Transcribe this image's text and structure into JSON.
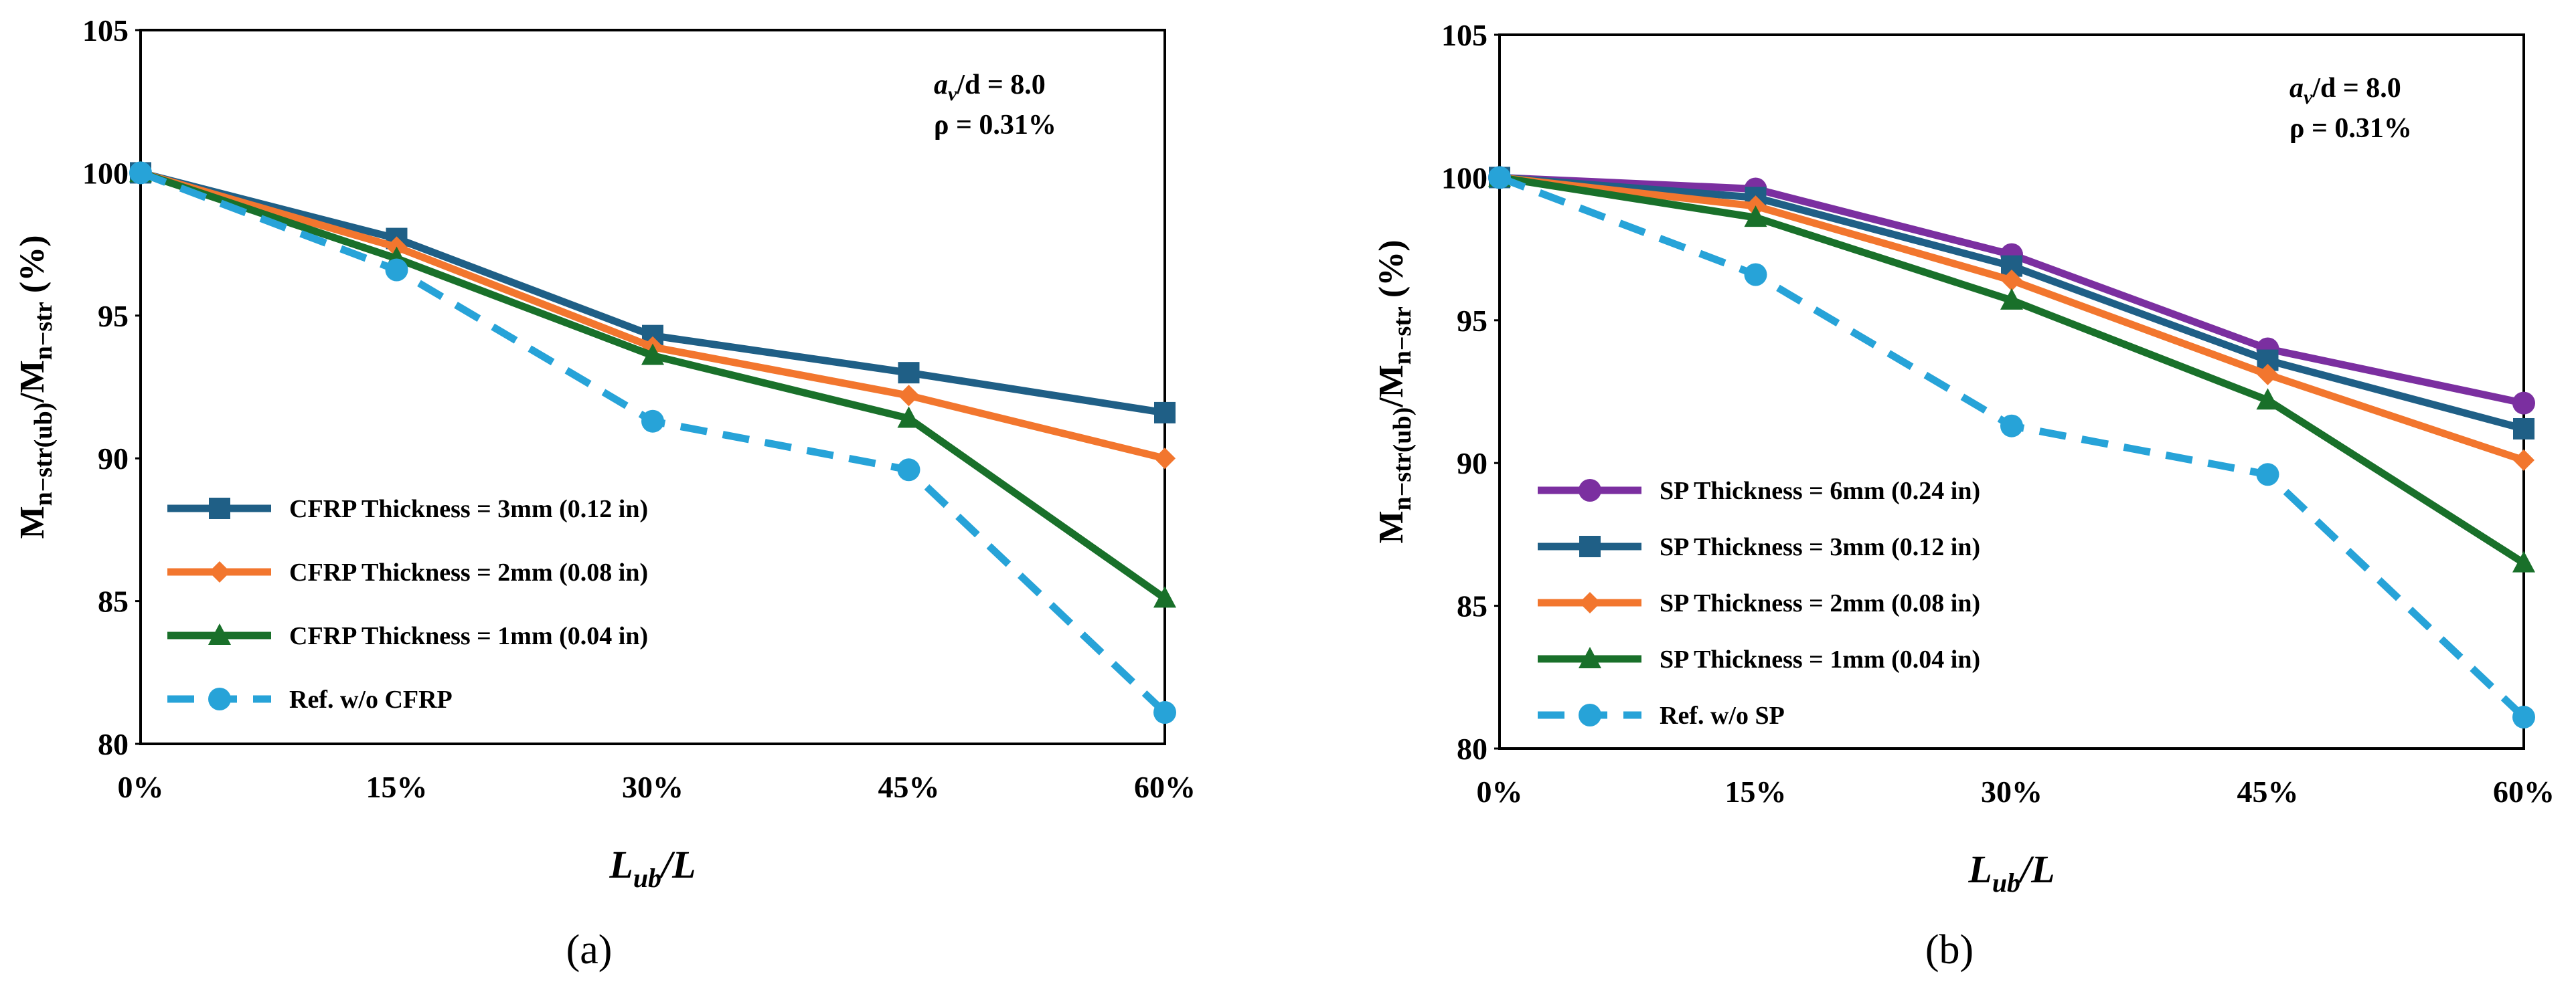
{
  "chart_data": [
    {
      "type": "line",
      "panel_label": "(a)",
      "categories": [
        "0%",
        "15%",
        "30%",
        "45%",
        "60%"
      ],
      "ylim": [
        80,
        105
      ],
      "yticks": [
        "80",
        "85",
        "90",
        "95",
        "100",
        "105"
      ],
      "xlabel": "L",
      "xlabel_sub": "ub",
      "xlabel_tail": "/L",
      "ylabel": "M",
      "ylabel_sub1": "n−str(ub)",
      "ylabel_mid": "/M",
      "ylabel_sub2": "n−str",
      "ylabel_tail": " (%)",
      "annotation_line1": "a",
      "annotation_line1_sub": "v",
      "annotation_line1_rest": "/d = 8.0",
      "annotation_line2": "ρ = 0.31%",
      "legend_position": "bottom-left",
      "series": [
        {
          "name": "CFRP Thickness = 3mm (0.12 in)",
          "color": "#1f5f86",
          "marker": "square",
          "dashed": false,
          "values": [
            100,
            97.7,
            94.3,
            93.0,
            91.6
          ]
        },
        {
          "name": "CFRP Thickness = 2mm (0.08 in)",
          "color": "#f2762e",
          "marker": "diamond",
          "dashed": false,
          "values": [
            100,
            97.4,
            93.9,
            92.2,
            90.0
          ]
        },
        {
          "name": "CFRP Thickness = 1mm (0.04 in)",
          "color": "#19702a",
          "marker": "triangle",
          "dashed": false,
          "values": [
            100,
            97.0,
            93.6,
            91.4,
            85.1
          ]
        },
        {
          "name": "Ref. w/o CFRP",
          "color": "#27a3d8",
          "marker": "circle",
          "dashed": true,
          "values": [
            100,
            96.6,
            91.3,
            89.6,
            81.1
          ]
        }
      ]
    },
    {
      "type": "line",
      "panel_label": "(b)",
      "categories": [
        "0%",
        "15%",
        "30%",
        "45%",
        "60%"
      ],
      "ylim": [
        80,
        105
      ],
      "yticks": [
        "80",
        "85",
        "90",
        "95",
        "100",
        "105"
      ],
      "xlabel": "L",
      "xlabel_sub": "ub",
      "xlabel_tail": "/L",
      "ylabel": "M",
      "ylabel_sub1": "n−str(ub)",
      "ylabel_mid": "/M",
      "ylabel_sub2": "n−str",
      "ylabel_tail": " (%)",
      "annotation_line1": "a",
      "annotation_line1_sub": "v",
      "annotation_line1_rest": "/d = 8.0",
      "annotation_line2": "ρ = 0.31%",
      "legend_position": "bottom-left",
      "series": [
        {
          "name": "SP Thickness = 6mm (0.24 in)",
          "color": "#7b2fa0",
          "marker": "circle",
          "dashed": false,
          "values": [
            100,
            99.6,
            97.3,
            94.0,
            92.1
          ]
        },
        {
          "name": "SP Thickness = 3mm (0.12 in)",
          "color": "#1f5f86",
          "marker": "square",
          "dashed": false,
          "values": [
            100,
            99.3,
            96.9,
            93.6,
            91.2
          ]
        },
        {
          "name": "SP Thickness = 2mm (0.08 in)",
          "color": "#f2762e",
          "marker": "diamond",
          "dashed": false,
          "values": [
            100,
            99.0,
            96.4,
            93.1,
            90.1
          ]
        },
        {
          "name": "SP Thickness = 1mm (0.04 in)",
          "color": "#19702a",
          "marker": "triangle",
          "dashed": false,
          "values": [
            100,
            98.6,
            95.7,
            92.2,
            86.5
          ]
        },
        {
          "name": "Ref. w/o SP",
          "color": "#27a3d8",
          "marker": "circle",
          "dashed": true,
          "values": [
            100,
            96.6,
            91.3,
            89.6,
            81.1
          ]
        }
      ]
    }
  ]
}
